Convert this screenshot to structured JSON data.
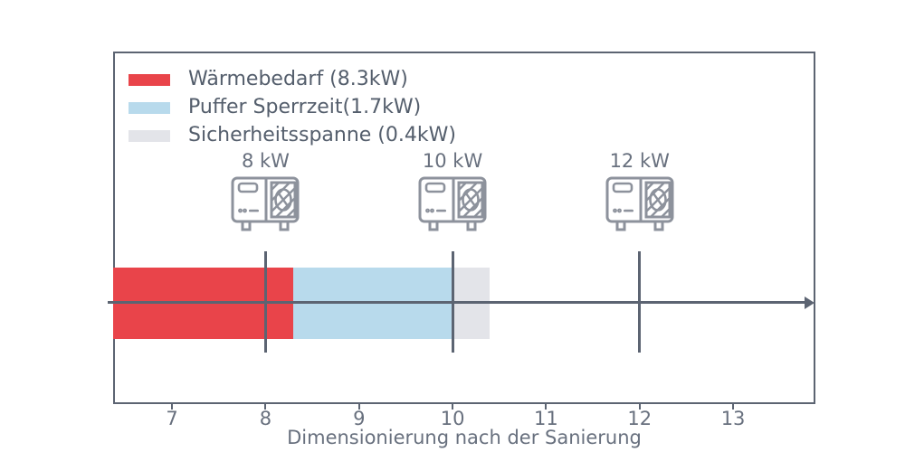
{
  "colors": {
    "line": "#5c6472",
    "axis_text": "#68707e",
    "legend_text": "#545e6c",
    "icon_stroke": "#8d929c",
    "heat_demand_red": "#e9444a",
    "buffer_blue": "#b8daec",
    "safety_gray": "#e3e4e9"
  },
  "chart_data": {
    "type": "bar",
    "orientation": "horizontal",
    "title": "",
    "xlabel": "Dimensionierung nach der Sanierung",
    "ylabel": "",
    "xlim": [
      6.37,
      13.88
    ],
    "xticks": [
      "7",
      "8",
      "9",
      "10",
      "11",
      "12",
      "13"
    ],
    "xtick_values": [
      7,
      8,
      9,
      10,
      11,
      12,
      13
    ],
    "grid": false,
    "legend": {
      "position": "upper left",
      "entries": [
        {
          "label": "Wärmebedarf (8.3kW)",
          "color": "#e9444a"
        },
        {
          "label": "Puffer Sperrzeit(1.7kW)",
          "color": "#b8daec"
        },
        {
          "label": "Sicherheitsspanne (0.4kW)",
          "color": "#e3e4e9"
        }
      ]
    },
    "bar": {
      "note": "stacked horizontal bar clipped at left axis edge, axis arrow through center",
      "segments": [
        {
          "name": "Wärmebedarf",
          "value_kw": 8.3,
          "from": 6.37,
          "to": 8.3,
          "color": "#e9444a"
        },
        {
          "name": "Puffer Sperrzeit",
          "value_kw": 1.7,
          "from": 8.3,
          "to": 10.0,
          "color": "#b8daec"
        },
        {
          "name": "Sicherheitsspanne",
          "value_kw": 0.4,
          "from": 10.0,
          "to": 10.4,
          "color": "#e3e4e9"
        }
      ]
    },
    "heat_pump_markers": [
      {
        "label": "8 kW",
        "value": 8
      },
      {
        "label": "10 kW",
        "value": 10
      },
      {
        "label": "12 kW",
        "value": 12
      }
    ]
  }
}
